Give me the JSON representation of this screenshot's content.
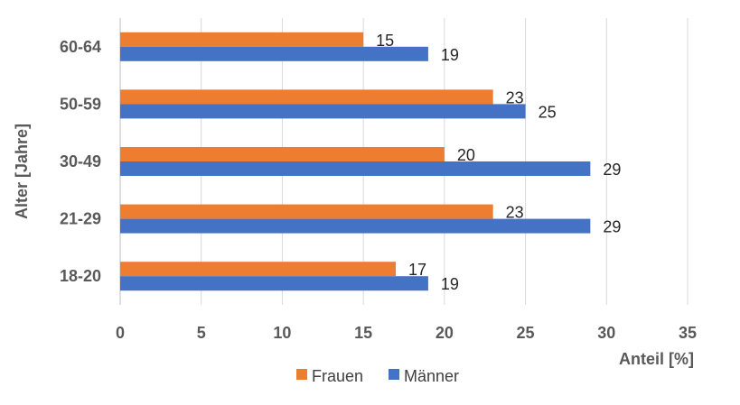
{
  "chart_data": {
    "type": "bar",
    "orientation": "horizontal",
    "categories": [
      "18-20",
      "21-29",
      "30-49",
      "50-59",
      "60-64"
    ],
    "series": [
      {
        "name": "Frauen",
        "values": [
          17,
          23,
          20,
          23,
          15
        ],
        "color": "#ED7D31"
      },
      {
        "name": "Männer",
        "values": [
          19,
          29,
          29,
          25,
          19
        ],
        "color": "#4472C4"
      }
    ],
    "xlabel": "Anteil [%]",
    "ylabel": "Alter [Jahre]",
    "xlim": [
      0,
      35
    ],
    "xticks": [
      0,
      5,
      10,
      15,
      20,
      25,
      30,
      35
    ],
    "grid": true,
    "legend": "bottom"
  }
}
